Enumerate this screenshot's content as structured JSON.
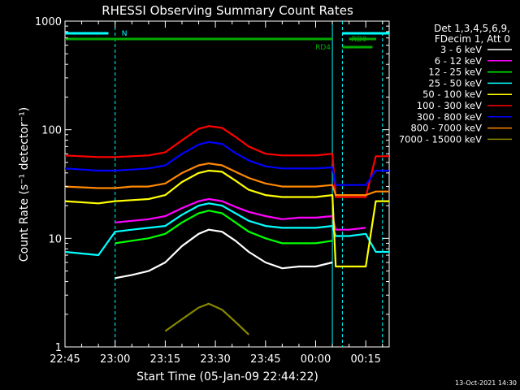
{
  "chart_data": {
    "type": "line",
    "title": "RHESSI Observing Summary Count Rates",
    "xlabel": "Start Time (05-Jan-09 22:44:22)",
    "ylabel": "Count Rate (s⁻¹ detector⁻¹)",
    "y_scale": "log",
    "ylim": [
      1,
      1000
    ],
    "xlim": [
      "22:45",
      "00:22"
    ],
    "x_ticks": [
      "22:45",
      "23:00",
      "23:15",
      "23:30",
      "23:45",
      "00:00",
      "00:15"
    ],
    "y_ticks": [
      "1",
      "10",
      "100",
      "1000"
    ],
    "legend_header": [
      "Det 1,3,4,5,6,9,",
      "FDecim 1, Att 0"
    ],
    "legend_placement": "right",
    "footer_date": "13-Oct-2021 14:30",
    "flags": [
      {
        "label": "N",
        "color": "#00FFFF"
      },
      {
        "label": "RD0",
        "color": "#00AA00"
      },
      {
        "label": "RD4",
        "color": "#00AA00"
      }
    ],
    "x": [
      "22:45",
      "22:55",
      "23:00",
      "23:05",
      "23:10",
      "23:15",
      "23:20",
      "23:25",
      "23:28",
      "23:32",
      "23:36",
      "23:40",
      "23:45",
      "23:50",
      "23:55",
      "00:00",
      "00:05",
      "00:06",
      "00:10",
      "00:15",
      "00:18",
      "00:22"
    ],
    "series": [
      {
        "name": "3 - 6 keV",
        "color": "#FFFFFF",
        "values": [
          null,
          null,
          4.3,
          4.6,
          5,
          6,
          8.5,
          11,
          12,
          11.5,
          9.5,
          7.5,
          6,
          5.3,
          5.5,
          5.5,
          6,
          null,
          null,
          null,
          null,
          null
        ]
      },
      {
        "name": "6 - 12 keV",
        "color": "#FF00FF",
        "values": [
          null,
          null,
          14,
          14.5,
          15,
          16,
          19,
          22,
          23,
          22,
          19.5,
          17.5,
          16,
          15,
          15.5,
          15.5,
          16,
          12,
          12,
          12.5,
          null,
          null
        ]
      },
      {
        "name": "12 - 25 keV",
        "color": "#00FF00",
        "values": [
          null,
          null,
          9,
          9.5,
          10,
          11,
          14,
          17,
          18,
          17,
          14,
          11.5,
          10,
          9,
          9,
          9,
          9.5,
          null,
          null,
          null,
          null,
          null
        ]
      },
      {
        "name": "25 - 50 keV",
        "color": "#00FFFF",
        "values": [
          7.5,
          7,
          11.5,
          12,
          12.5,
          13,
          16.5,
          20,
          21,
          20,
          17,
          14.5,
          13,
          12.5,
          12.5,
          12.5,
          13,
          10.5,
          10.5,
          11,
          7.5,
          7.5
        ]
      },
      {
        "name": "50 - 100 keV",
        "color": "#FFFF00",
        "values": [
          22,
          21,
          22,
          22.5,
          23,
          25,
          33,
          40,
          42,
          41,
          34,
          28,
          25,
          24,
          24,
          24,
          25,
          5.5,
          5.5,
          5.5,
          22,
          22
        ]
      },
      {
        "name": "100 - 300 keV",
        "color": "#FF0000",
        "values": [
          58,
          56,
          56,
          57,
          58,
          62,
          80,
          102,
          108,
          104,
          86,
          70,
          60,
          58,
          58,
          58,
          60,
          24,
          24,
          24,
          57,
          57
        ]
      },
      {
        "name": "300 - 800 keV",
        "color": "#0000FF",
        "values": [
          44,
          42,
          42,
          43,
          44,
          47,
          60,
          73,
          77,
          74,
          61,
          52,
          46,
          44,
          44,
          44,
          45,
          31,
          31,
          31,
          42,
          42
        ]
      },
      {
        "name": "800 - 7000 keV",
        "color": "#FF8800",
        "values": [
          30,
          29,
          29,
          30,
          30,
          32,
          40,
          47,
          49,
          47,
          41,
          36,
          32,
          30,
          30,
          30,
          31,
          25,
          25,
          25,
          27,
          27
        ]
      },
      {
        "name": "7000 - 15000 keV",
        "color": "#888800",
        "values": [
          null,
          null,
          null,
          null,
          null,
          1.4,
          1.8,
          2.3,
          2.5,
          2.2,
          1.7,
          1.3,
          null,
          null,
          null,
          null,
          null,
          null,
          null,
          null,
          null,
          null
        ]
      }
    ]
  }
}
